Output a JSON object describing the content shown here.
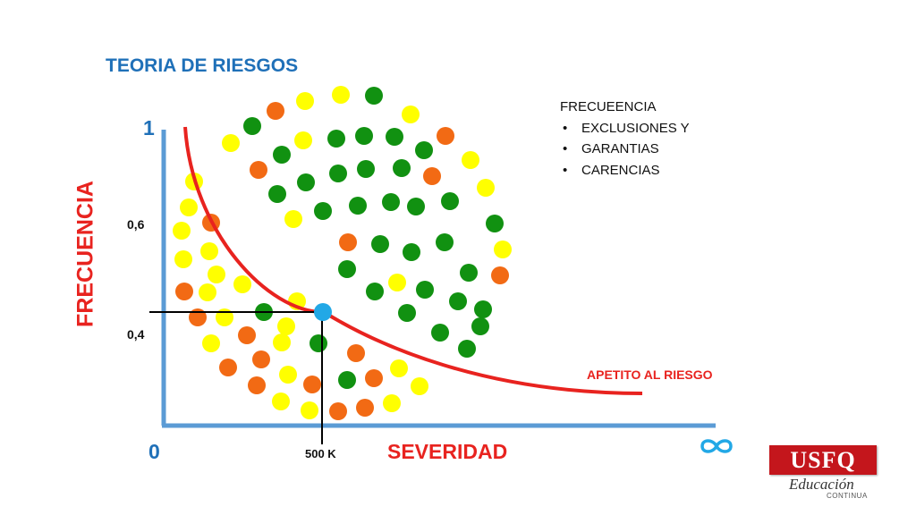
{
  "title": "TEORIA DE RIESGOS",
  "notes": {
    "heading": "FRECUEENCIA",
    "items": [
      "EXCLUSIONES Y",
      "GARANTIAS",
      "CARENCIAS"
    ]
  },
  "axes": {
    "y_label": "FRECUENCIA",
    "x_label": "SEVERIDAD",
    "y_max_label": "1",
    "y_tick_high": "0,6",
    "y_tick_low": "0,4",
    "origin_label": "0",
    "x_tick": "500 K",
    "x_max_symbol": "∞"
  },
  "curve_label": "APETITO AL RIESGO",
  "logo": {
    "word": "USFQ",
    "subtitle": "Educación",
    "subtitle2": "CONTINUA"
  },
  "colors": {
    "axis": "#5b9bd5",
    "curve": "#e8231f",
    "title": "#1f70b8",
    "marker": "#22a8e6",
    "green": "#119111",
    "yellow": "#ffff00",
    "orange": "#f26a14"
  }
}
